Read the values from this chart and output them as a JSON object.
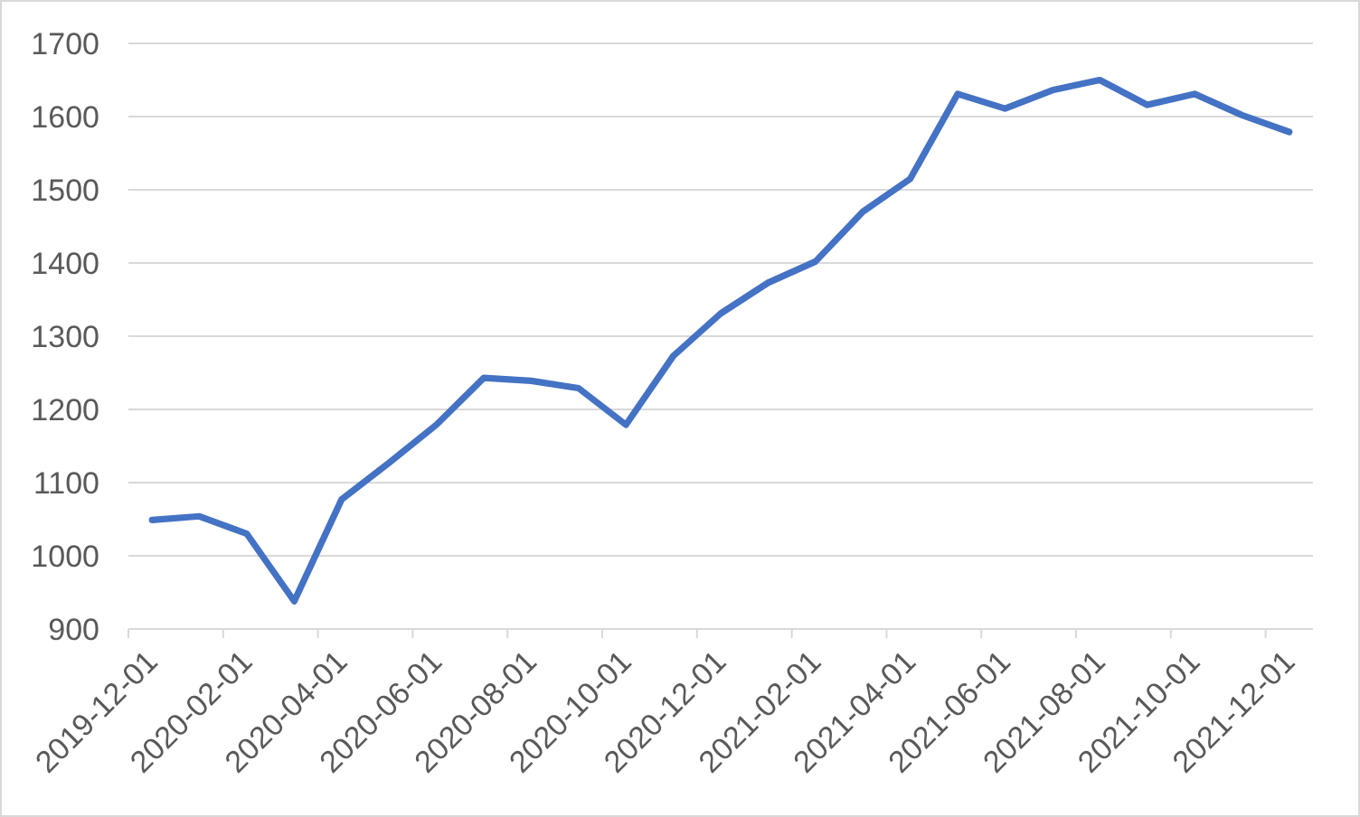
{
  "chart_data": {
    "type": "line",
    "categories": [
      "2019-12-01",
      null,
      "2020-02-01",
      null,
      "2020-04-01",
      null,
      "2020-06-01",
      null,
      "2020-08-01",
      null,
      "2020-10-01",
      null,
      "2020-12-01",
      null,
      "2021-02-01",
      null,
      "2021-04-01",
      null,
      "2021-06-01",
      null,
      "2021-08-01",
      null,
      "2021-10-01",
      null,
      "2021-12-01"
    ],
    "series": [
      {
        "color": "#4472c4",
        "values": [
          1049,
          1054,
          1030,
          938,
          1077,
          1127,
          1179,
          1243,
          1239,
          1229,
          1179,
          1273,
          1331,
          1373,
          1402,
          1470,
          1515,
          1631,
          1611,
          1636,
          1650,
          1616,
          1631,
          1602,
          1579
        ]
      }
    ],
    "ylim": [
      900,
      1700
    ],
    "yticks": [
      900,
      1000,
      1100,
      1200,
      1300,
      1400,
      1500,
      1600,
      1700
    ],
    "grid": "y",
    "line_style": "solid"
  }
}
